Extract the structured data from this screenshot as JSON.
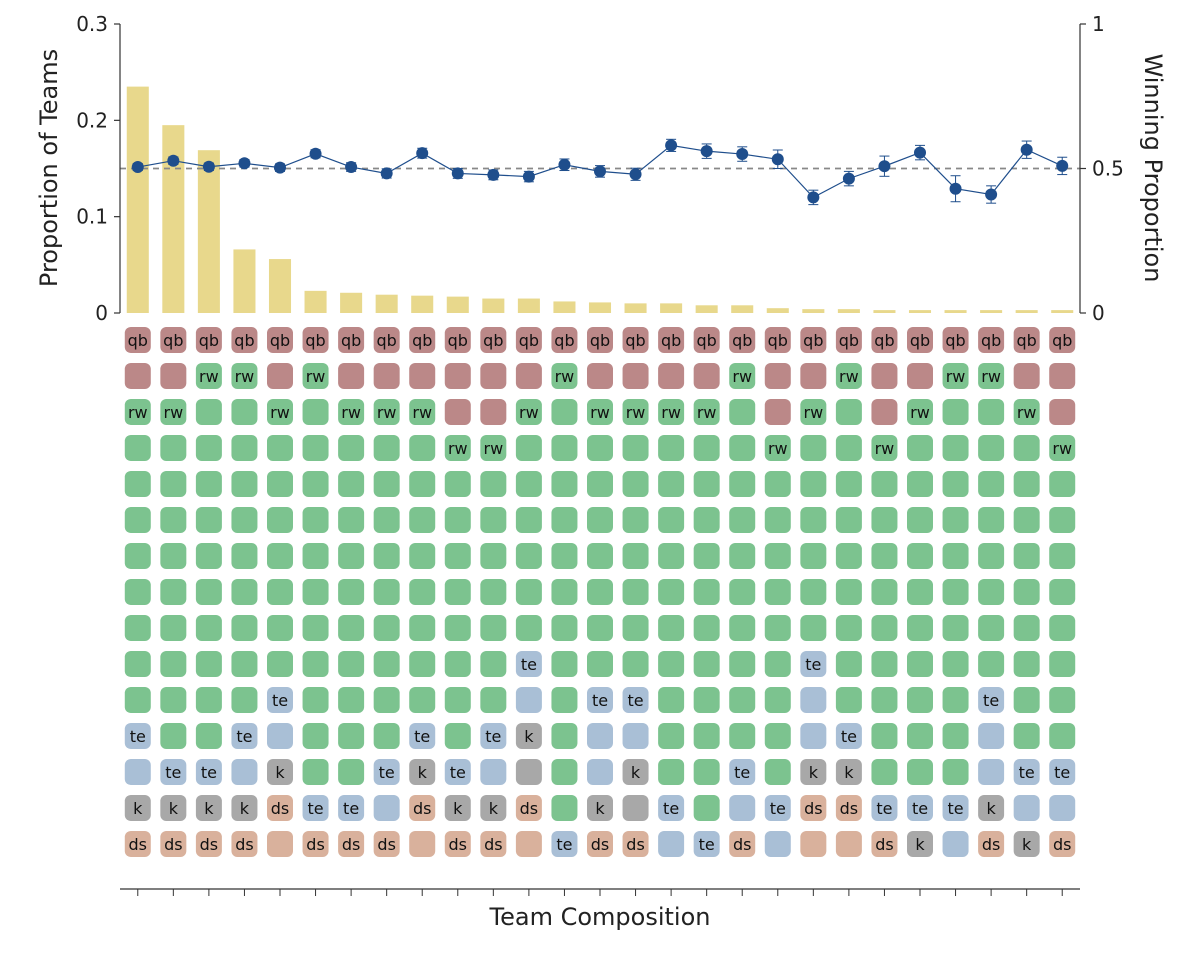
{
  "chart_data": {
    "type": "bar",
    "xlabel": "Team Composition",
    "ylabel": "Proportion of Teams",
    "y2label": "Winning Proportion",
    "ylim": [
      0,
      0.3
    ],
    "y2lim": [
      0,
      1
    ],
    "yticks": [
      "0",
      "0.1",
      "0.2",
      "0.3"
    ],
    "y2ticks": [
      "0",
      "0.5",
      "1"
    ],
    "reference_line": {
      "axis": "y2",
      "value": 0.5,
      "style": "dashed"
    },
    "grid": false,
    "bar_color": "#e8d88c",
    "line_color": "#1f4e8c",
    "bars": {
      "values": [
        0.235,
        0.195,
        0.169,
        0.066,
        0.056,
        0.023,
        0.021,
        0.019,
        0.018,
        0.017,
        0.015,
        0.015,
        0.012,
        0.011,
        0.01,
        0.01,
        0.008,
        0.008,
        0.005,
        0.004,
        0.004,
        0.003,
        0.003,
        0.003,
        0.003,
        0.003,
        0.003
      ]
    },
    "winning": {
      "values": [
        0.505,
        0.527,
        0.506,
        0.518,
        0.503,
        0.551,
        0.505,
        0.483,
        0.553,
        0.483,
        0.478,
        0.472,
        0.513,
        0.49,
        0.48,
        0.58,
        0.56,
        0.55,
        0.532,
        0.4,
        0.465,
        0.508,
        0.555,
        0.43,
        0.41,
        0.565,
        0.509
      ],
      "errors": [
        0.012,
        0.013,
        0.013,
        0.013,
        0.013,
        0.014,
        0.015,
        0.016,
        0.017,
        0.017,
        0.017,
        0.018,
        0.02,
        0.02,
        0.021,
        0.021,
        0.025,
        0.025,
        0.032,
        0.025,
        0.025,
        0.035,
        0.025,
        0.045,
        0.03,
        0.03,
        0.03
      ]
    },
    "roles": {
      "qb": "#bb8888",
      "rw": "#7cc38f",
      "g": "#7cc38f",
      "te": "#a9bfd6",
      "k": "#a8a8a8",
      "ds": "#d9b19c"
    },
    "composition": [
      [
        "qb",
        "qb",
        "qb",
        "qb",
        "qb",
        "qb",
        "qb",
        "qb",
        "qb",
        "qb",
        "qb",
        "qb",
        "qb",
        "qb",
        "qb",
        "qb",
        "qb",
        "qb",
        "qb",
        "qb",
        "qb",
        "qb",
        "qb",
        "qb",
        "qb",
        "qb",
        "qb"
      ],
      [
        "qb0",
        "qb0",
        "rw",
        "rw",
        "qb0",
        "rw",
        "qb0",
        "qb0",
        "qb0",
        "qb0",
        "qb0",
        "qb0",
        "rw",
        "qb0",
        "qb0",
        "qb0",
        "qb0",
        "rw",
        "qb0",
        "qb0",
        "rw",
        "qb0",
        "qb0",
        "rw",
        "rw",
        "qb0",
        "qb0"
      ],
      [
        "rw",
        "rw",
        "g",
        "g",
        "rw",
        "g",
        "rw",
        "rw",
        "rw",
        "qb0",
        "qb0",
        "rw",
        "g",
        "rw",
        "rw",
        "rw",
        "rw",
        "g",
        "qb0",
        "rw",
        "g",
        "qb0",
        "rw",
        "g",
        "g",
        "rw",
        "qb0"
      ],
      [
        "g",
        "g",
        "g",
        "g",
        "g",
        "g",
        "g",
        "g",
        "g",
        "rw",
        "rw",
        "g",
        "g",
        "g",
        "g",
        "g",
        "g",
        "g",
        "rw",
        "g",
        "g",
        "rw",
        "g",
        "g",
        "g",
        "g",
        "rw"
      ],
      [
        "g",
        "g",
        "g",
        "g",
        "g",
        "g",
        "g",
        "g",
        "g",
        "g",
        "g",
        "g",
        "g",
        "g",
        "g",
        "g",
        "g",
        "g",
        "g",
        "g",
        "g",
        "g",
        "g",
        "g",
        "g",
        "g",
        "g"
      ],
      [
        "g",
        "g",
        "g",
        "g",
        "g",
        "g",
        "g",
        "g",
        "g",
        "g",
        "g",
        "g",
        "g",
        "g",
        "g",
        "g",
        "g",
        "g",
        "g",
        "g",
        "g",
        "g",
        "g",
        "g",
        "g",
        "g",
        "g"
      ],
      [
        "g",
        "g",
        "g",
        "g",
        "g",
        "g",
        "g",
        "g",
        "g",
        "g",
        "g",
        "g",
        "g",
        "g",
        "g",
        "g",
        "g",
        "g",
        "g",
        "g",
        "g",
        "g",
        "g",
        "g",
        "g",
        "g",
        "g"
      ],
      [
        "g",
        "g",
        "g",
        "g",
        "g",
        "g",
        "g",
        "g",
        "g",
        "g",
        "g",
        "g",
        "g",
        "g",
        "g",
        "g",
        "g",
        "g",
        "g",
        "g",
        "g",
        "g",
        "g",
        "g",
        "g",
        "g",
        "g"
      ],
      [
        "g",
        "g",
        "g",
        "g",
        "g",
        "g",
        "g",
        "g",
        "g",
        "g",
        "g",
        "g",
        "g",
        "g",
        "g",
        "g",
        "g",
        "g",
        "g",
        "g",
        "g",
        "g",
        "g",
        "g",
        "g",
        "g",
        "g"
      ],
      [
        "g",
        "g",
        "g",
        "g",
        "g",
        "g",
        "g",
        "g",
        "g",
        "g",
        "g",
        "te",
        "g",
        "g",
        "g",
        "g",
        "g",
        "g",
        "g",
        "te",
        "g",
        "g",
        "g",
        "g",
        "g",
        "g",
        "g"
      ],
      [
        "g",
        "g",
        "g",
        "g",
        "te",
        "g",
        "g",
        "g",
        "g",
        "g",
        "g",
        "te0",
        "g",
        "te",
        "te",
        "g",
        "g",
        "g",
        "g",
        "te0",
        "g",
        "g",
        "g",
        "g",
        "te",
        "g",
        "g"
      ],
      [
        "te",
        "g",
        "g",
        "te",
        "te0",
        "g",
        "g",
        "g",
        "te",
        "g",
        "te",
        "k",
        "g",
        "te0",
        "te0",
        "g",
        "g",
        "g",
        "g",
        "te0",
        "te",
        "g",
        "g",
        "g",
        "te0",
        "g",
        "g"
      ],
      [
        "te0",
        "te",
        "te",
        "te0",
        "k",
        "g",
        "g",
        "te",
        "k",
        "te",
        "te0",
        "k0",
        "g",
        "te0",
        "k",
        "g",
        "g",
        "te",
        "g",
        "k",
        "k",
        "g",
        "g",
        "g",
        "te0",
        "te",
        "te"
      ],
      [
        "k",
        "k",
        "k",
        "k",
        "ds",
        "te",
        "te",
        "te0",
        "ds",
        "k",
        "k",
        "ds",
        "g",
        "k",
        "k0",
        "te",
        "g",
        "te0",
        "te",
        "ds",
        "ds",
        "te",
        "te",
        "te",
        "k",
        "te0",
        "te0"
      ],
      [
        "ds",
        "ds",
        "ds",
        "ds",
        "ds0",
        "ds",
        "ds",
        "ds",
        "ds0",
        "ds",
        "ds",
        "ds0",
        "te",
        "ds",
        "ds",
        "te0",
        "te",
        "ds",
        "te0",
        "ds0",
        "ds0",
        "ds",
        "k",
        "te0",
        "ds",
        "k",
        "ds"
      ]
    ]
  }
}
